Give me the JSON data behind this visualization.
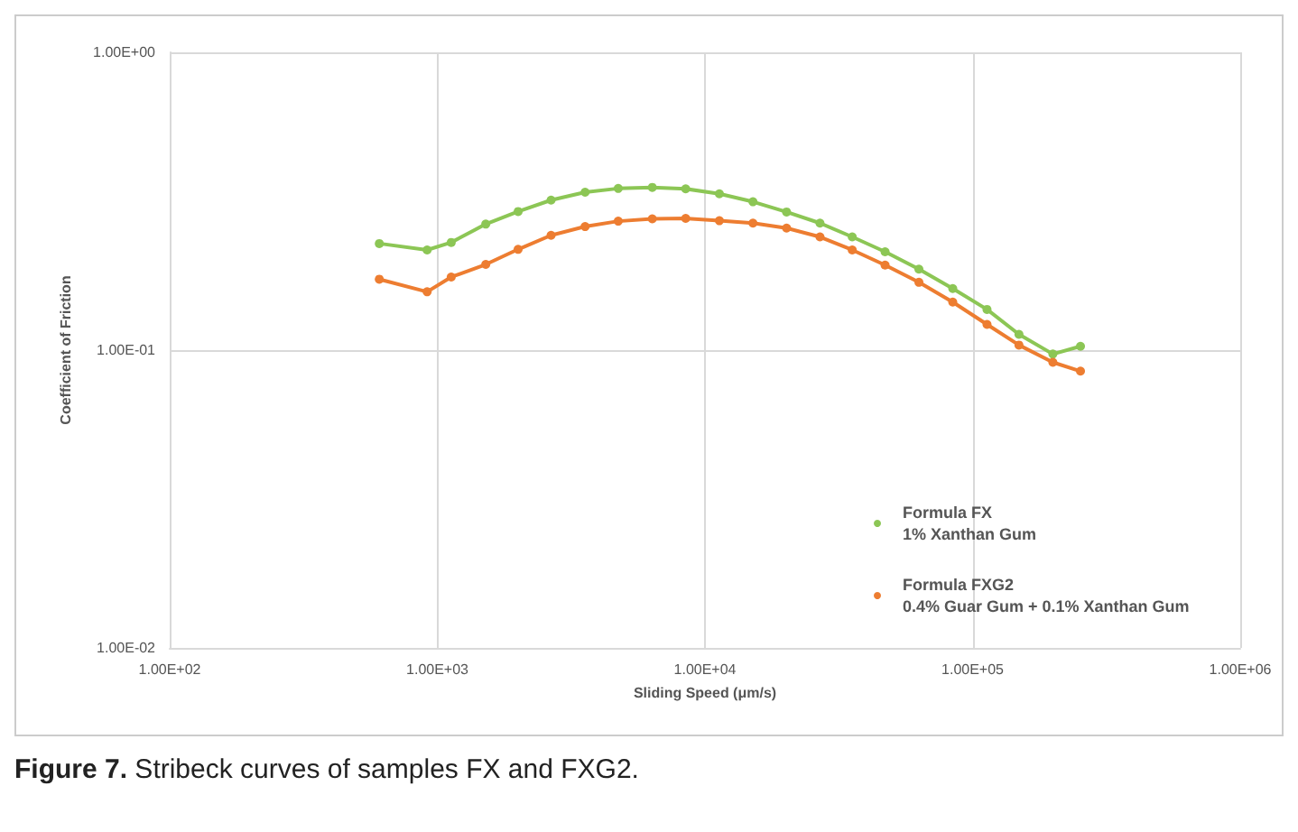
{
  "chart_data": {
    "type": "line",
    "xlabel": "Sliding Speed (μm/s)",
    "ylabel": "Coefficient of Friction",
    "annotations": [
      "Figure 7. Stribeck curves of samples FX and FXG2."
    ],
    "x": [
      607,
      916,
      1127,
      1517,
      2004,
      2661,
      3566,
      4742,
      6356,
      8472,
      11320,
      15110,
      20180,
      26900,
      35500,
      47100,
      63000,
      84300,
      113200,
      149000,
      199500,
      253000
    ],
    "series": [
      {
        "name": "Formula FX\n1% Xanthan Gum",
        "color": "#8cc655",
        "values": [
          0.228,
          0.217,
          0.23,
          0.265,
          0.292,
          0.319,
          0.339,
          0.349,
          0.352,
          0.348,
          0.335,
          0.315,
          0.291,
          0.267,
          0.24,
          0.214,
          0.187,
          0.161,
          0.137,
          0.113,
          0.097,
          0.103
        ]
      },
      {
        "name": "Formula FXG2\n0.4% Guar Gum + 0.1% Xanthan Gum",
        "color": "#ed7d31",
        "values": [
          0.173,
          0.157,
          0.176,
          0.194,
          0.218,
          0.243,
          0.26,
          0.271,
          0.276,
          0.277,
          0.272,
          0.267,
          0.257,
          0.24,
          0.217,
          0.193,
          0.169,
          0.145,
          0.122,
          0.104,
          0.091,
          0.085
        ]
      }
    ],
    "log": "xy",
    "xlim": [
      100,
      1000000
    ],
    "ylim": [
      0.01,
      1
    ],
    "xticks": [
      {
        "value": 100,
        "label": "1.00E+02"
      },
      {
        "value": 1000,
        "label": "1.00E+03"
      },
      {
        "value": 10000,
        "label": "1.00E+04"
      },
      {
        "value": 100000,
        "label": "1.00E+05"
      },
      {
        "value": 1000000,
        "label": "1.00E+06"
      }
    ],
    "yticks": [
      {
        "value": 0.01,
        "label": "1.00E-02"
      },
      {
        "value": 0.1,
        "label": "1.00E-01"
      },
      {
        "value": 1,
        "label": "1.00E+00"
      }
    ],
    "grid": true,
    "legend": "bottom right",
    "marker": "circle",
    "line_style": "solid"
  }
}
